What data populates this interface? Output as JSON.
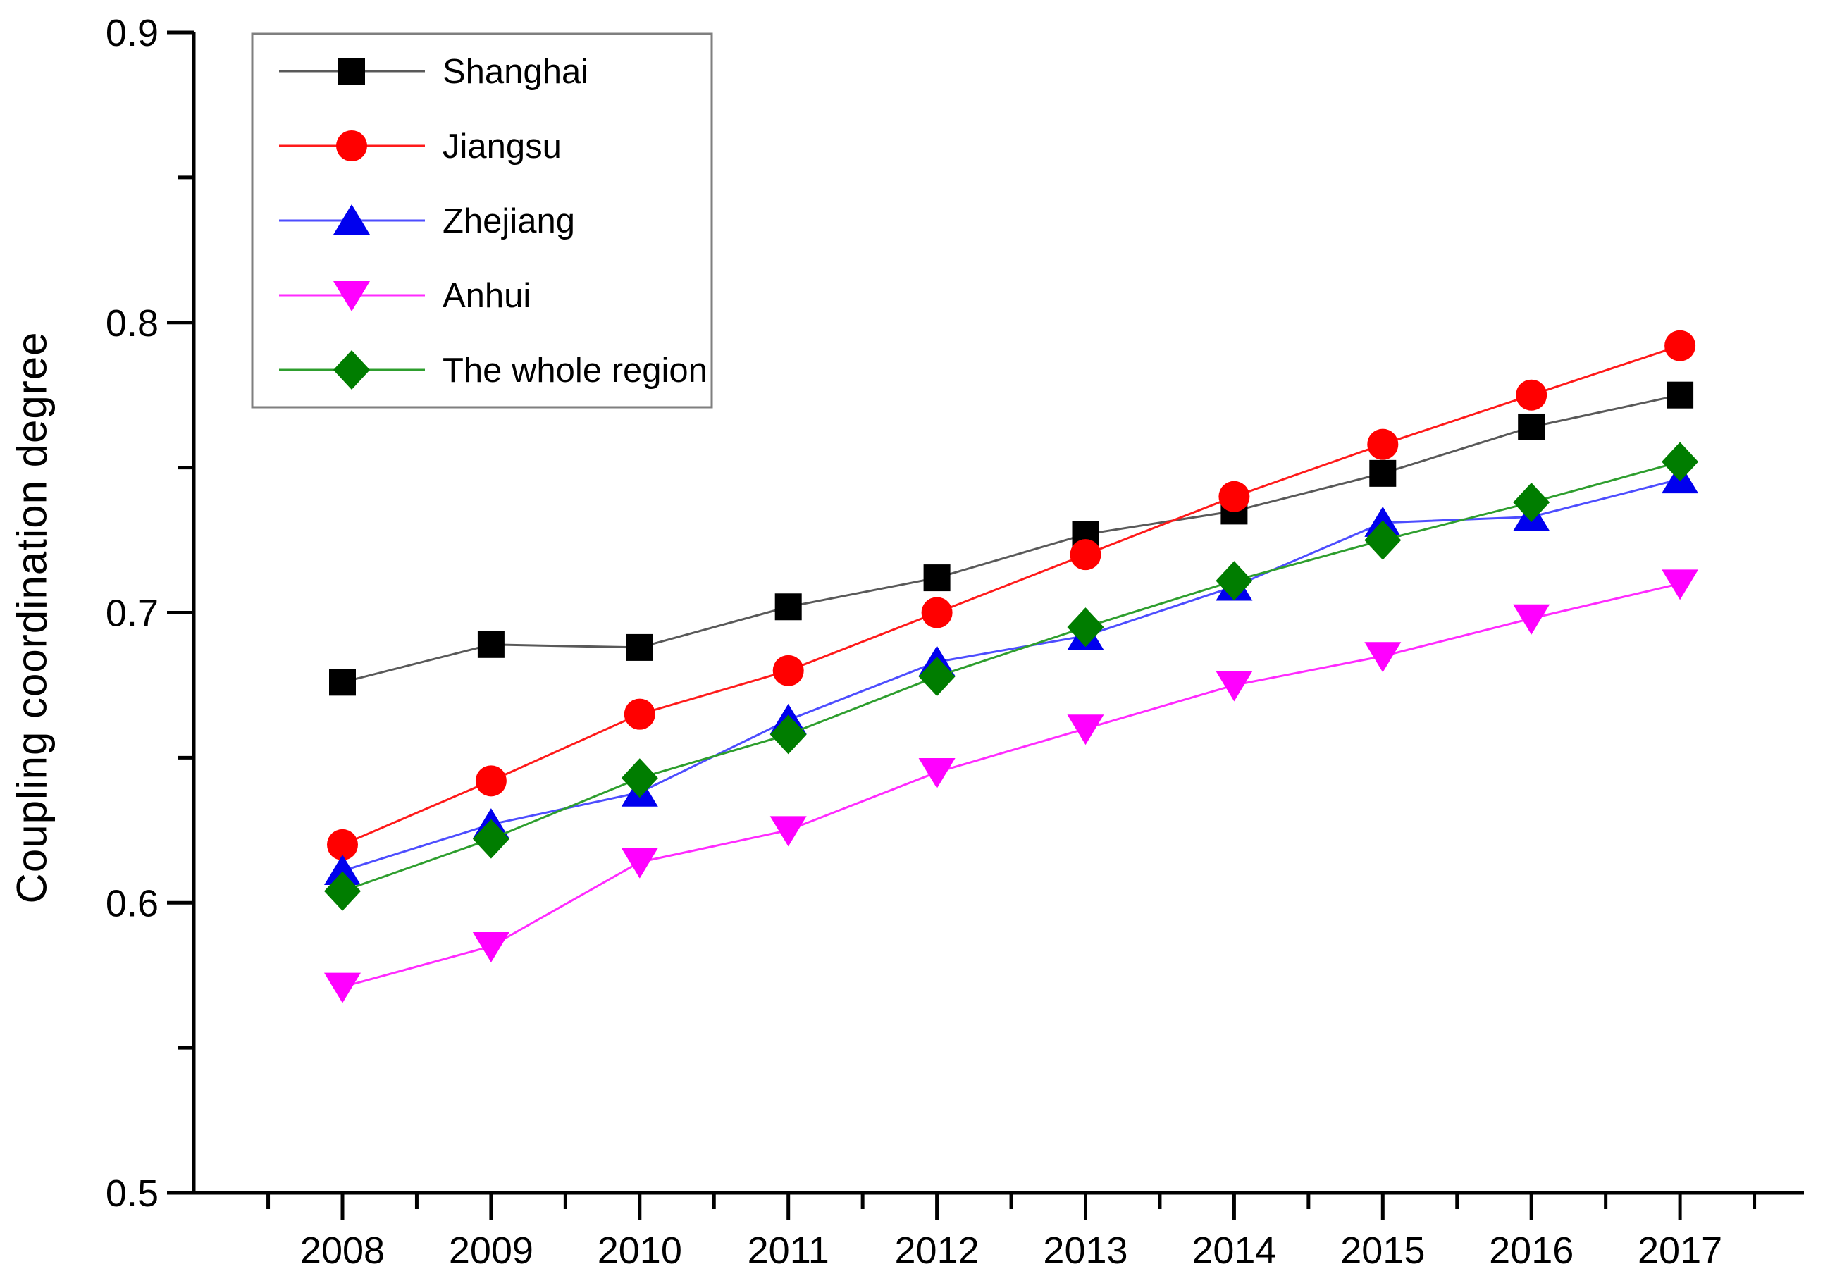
{
  "figure": {
    "background": "#ffffff",
    "axis_color": "#000000",
    "legend_border_color": "#7f7f7f"
  },
  "chart_data": {
    "type": "line",
    "title": "",
    "xlabel": "",
    "ylabel": "Coupling coordination degree",
    "x": [
      2008,
      2009,
      2010,
      2011,
      2012,
      2013,
      2014,
      2015,
      2016,
      2017
    ],
    "x_tick_labels": [
      "2008",
      "2009",
      "2010",
      "2011",
      "2012",
      "2013",
      "2014",
      "2015",
      "2016",
      "2017"
    ],
    "ylim": [
      0.5,
      0.9
    ],
    "y_major_ticks": [
      0.5,
      0.6,
      0.7,
      0.8,
      0.9
    ],
    "y_tick_labels": [
      "0.5",
      "0.6",
      "0.7",
      "0.8",
      "0.9"
    ],
    "y_minor_ticks": [
      0.55,
      0.65,
      0.75,
      0.85
    ],
    "x_minor_ticks": [
      2007.5,
      2008.5,
      2009.5,
      2010.5,
      2011.5,
      2012.5,
      2013.5,
      2014.5,
      2015.5,
      2016.5,
      2017.5
    ],
    "grid": false,
    "legend_position": "top-left",
    "series": [
      {
        "name": "Shanghai",
        "marker": "square",
        "color": "#000000",
        "line_color": "#595959",
        "values": [
          0.676,
          0.689,
          0.688,
          0.702,
          0.712,
          0.727,
          0.735,
          0.748,
          0.764,
          0.775
        ]
      },
      {
        "name": "Jiangsu",
        "marker": "circle",
        "color": "#ff0000",
        "line_color": "#ff1a1a",
        "values": [
          0.62,
          0.642,
          0.665,
          0.68,
          0.7,
          0.72,
          0.74,
          0.758,
          0.775,
          0.792
        ]
      },
      {
        "name": "Zhejiang",
        "marker": "triangle-up",
        "color": "#0000ee",
        "line_color": "#4d4dff",
        "values": [
          0.611,
          0.627,
          0.638,
          0.663,
          0.683,
          0.692,
          0.709,
          0.731,
          0.733,
          0.746
        ]
      },
      {
        "name": "Anhui",
        "marker": "triangle-down",
        "color": "#ff00ff",
        "line_color": "#ff2bff",
        "values": [
          0.571,
          0.585,
          0.614,
          0.625,
          0.645,
          0.66,
          0.675,
          0.685,
          0.698,
          0.71
        ]
      },
      {
        "name": "The whole region",
        "marker": "diamond",
        "color": "#007d00",
        "line_color": "#2e9e2e",
        "values": [
          0.604,
          0.622,
          0.643,
          0.658,
          0.678,
          0.695,
          0.711,
          0.725,
          0.738,
          0.752
        ]
      }
    ]
  }
}
